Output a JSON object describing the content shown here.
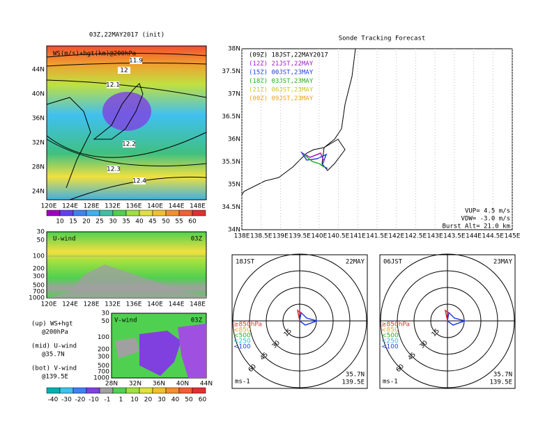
{
  "left_map": {
    "title": "03Z,22MAY2017 (init)",
    "label": "WS(m/s)+hgt(km)@200hPa",
    "contour_labels": [
      "11.9",
      "12",
      "12.1",
      "12.2",
      "12.3",
      "12.4"
    ],
    "lat_labels": [
      "44N",
      "40N",
      "36N",
      "32N",
      "28N",
      "24N"
    ],
    "lon_labels": [
      "120E",
      "124E",
      "128E",
      "132E",
      "136E",
      "140E",
      "144E",
      "148E"
    ],
    "colorbar_labels": [
      "10",
      "15",
      "20",
      "25",
      "30",
      "35",
      "40",
      "45",
      "50",
      "55",
      "60"
    ]
  },
  "u_wind": {
    "label": "U-wind",
    "time": "03Z",
    "pressure_labels": [
      "30",
      "50",
      "100",
      "200",
      "300",
      "500",
      "700",
      "1000"
    ],
    "lon_labels": [
      "120E",
      "124E",
      "128E",
      "132E",
      "136E",
      "140E",
      "144E",
      "148E"
    ]
  },
  "v_wind": {
    "label": "V-wind",
    "time": "03Z",
    "pressure_labels": [
      "30",
      "50",
      "100",
      "200",
      "300",
      "500",
      "700",
      "1000"
    ],
    "lat_labels": [
      "28N",
      "32N",
      "36N",
      "40N",
      "44N"
    ]
  },
  "notes": [
    "(up) WS+hgt",
    "@200hPa",
    "(mid) U-wind",
    "@35.7N",
    "(bot) V-wind",
    "@139.5E"
  ],
  "wind_colorbar_labels": [
    "-40",
    "-30",
    "-20",
    "-10",
    "-1",
    "1",
    "10",
    "20",
    "30",
    "40",
    "50",
    "60"
  ],
  "track_map": {
    "title": "Sonde Tracking Forecast",
    "legend": [
      {
        "text": "(09Z)  18JST,22MAY2017",
        "color": "#000000"
      },
      {
        "text": "(12Z)  21JST,22MAY",
        "color": "#a020c0"
      },
      {
        "text": "(15Z)  00JST,23MAY",
        "color": "#2040e0"
      },
      {
        "text": "(18Z)  03JST,23MAY",
        "color": "#20b020"
      },
      {
        "text": "(21Z)  06JST,23MAY",
        "color": "#c8c820"
      },
      {
        "text": "(00Z)  09JST,23MAY",
        "color": "#f0a020"
      }
    ],
    "lat_labels": [
      "38N",
      "37.5N",
      "37N",
      "36.5N",
      "36N",
      "35.5N",
      "35N",
      "34.5N",
      "34N"
    ],
    "lon_labels": [
      "138E",
      "138.5E",
      "139E",
      "139.5E",
      "140E",
      "140.5E",
      "141E",
      "141.5E",
      "142E",
      "142.5E",
      "143E",
      "143.5E",
      "144E",
      "144.5E",
      "145E"
    ],
    "params": [
      "VUP=  4.5 m/s",
      "VDW= -3.0 m/s",
      "Burst Alt= 21.0 km"
    ]
  },
  "hodographs": [
    {
      "time": "18JST",
      "date": "22MAY",
      "ring_labels": [
        "15",
        "30",
        "45",
        "60"
      ],
      "levels": [
        "≥850hPa",
        "<850",
        "<500",
        "<250",
        "<100"
      ],
      "unit": "ms-1",
      "lat": "35.7N",
      "lon": "139.5E"
    },
    {
      "time": "06JST",
      "date": "23MAY",
      "ring_labels": [
        "15",
        "30",
        "45",
        "60"
      ],
      "levels": [
        "≥850hPa",
        "<850",
        "<500",
        "<250",
        "<100"
      ],
      "unit": "ms-1",
      "lat": "35.7N",
      "lon": "139.5E"
    }
  ]
}
